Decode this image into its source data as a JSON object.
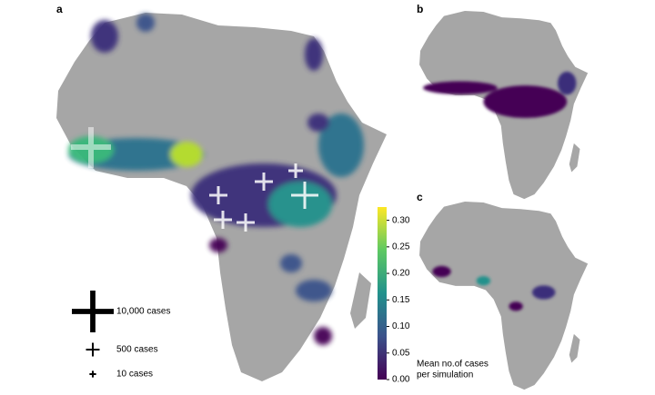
{
  "panels": [
    {
      "label": "a"
    },
    {
      "label": "b"
    },
    {
      "label": "c"
    }
  ],
  "colorbar": {
    "label_lines": [
      "Mean no.of cases",
      "per simulation"
    ],
    "lim": [
      0,
      0.325
    ],
    "ticks": [
      {
        "value": 0,
        "label": "0.00"
      },
      {
        "value": 0.05,
        "label": "0.05"
      },
      {
        "value": 0.1,
        "label": "0.10"
      },
      {
        "value": 0.15,
        "label": "0.15"
      },
      {
        "value": 0.2,
        "label": "0.20"
      },
      {
        "value": 0.25,
        "label": "0.25"
      },
      {
        "value": 0.3,
        "label": "0.30"
      }
    ]
  },
  "size_legend": [
    {
      "value": 10000,
      "label": "10,000 cases"
    },
    {
      "value": 500,
      "label": "500 cases"
    },
    {
      "value": 10,
      "label": "10 cases"
    }
  ]
}
